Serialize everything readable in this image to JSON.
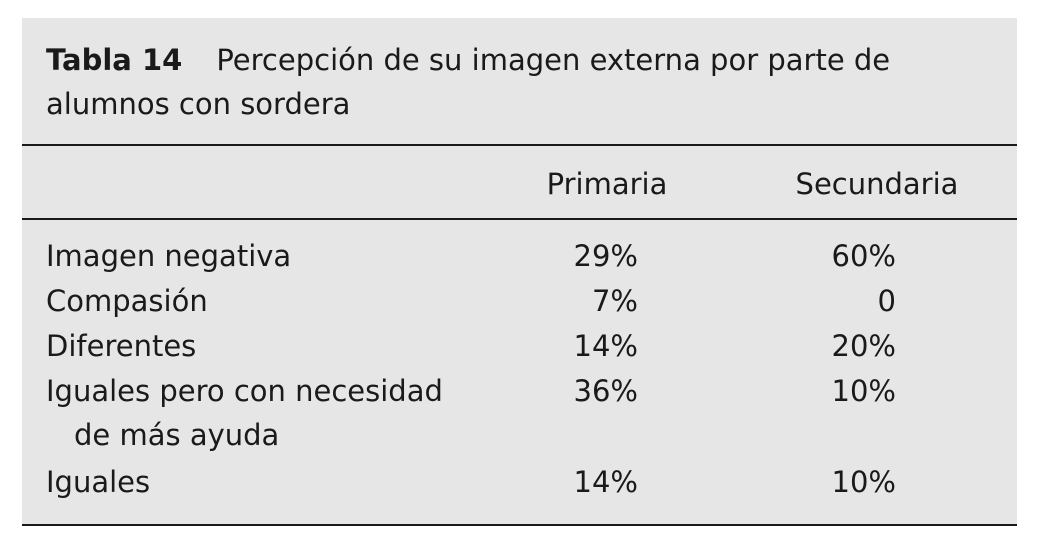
{
  "caption": {
    "label": "Tabla 14",
    "title": "Percepción de su imagen externa por parte de alumnos con sordera"
  },
  "columns": [
    "Primaria",
    "Secundaria"
  ],
  "rows": [
    {
      "label": "Imagen negativa",
      "label_cont": "",
      "primaria": "29%",
      "secundaria": "60%"
    },
    {
      "label": "Compasión",
      "label_cont": "",
      "primaria": "7%",
      "secundaria": "0"
    },
    {
      "label": "Diferentes",
      "label_cont": "",
      "primaria": "14%",
      "secundaria": "20%"
    },
    {
      "label": "Iguales pero con necesidad",
      "label_cont": "de más ayuda",
      "primaria": "36%",
      "secundaria": "10%"
    },
    {
      "label": "Iguales",
      "label_cont": "",
      "primaria": "14%",
      "secundaria": "10%"
    }
  ]
}
